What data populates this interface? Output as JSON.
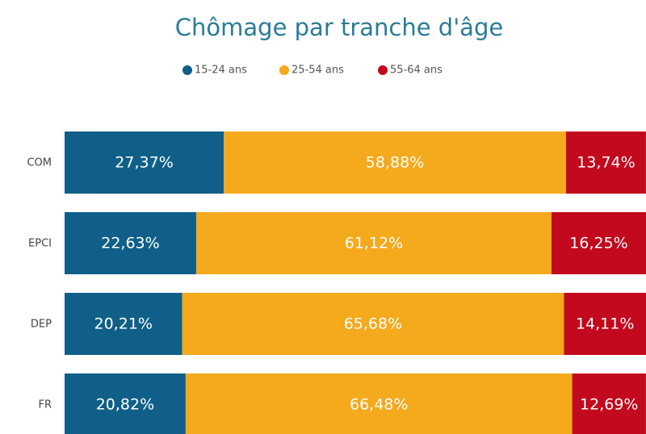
{
  "chart_data": {
    "type": "stacked_bar_horizontal",
    "title": "Chômage par tranche d'âge",
    "categories": [
      "COM",
      "EPCI",
      "DEP",
      "FR"
    ],
    "series": [
      {
        "name": "15-24 ans",
        "color": "#0f5f88",
        "values": [
          27.37,
          22.63,
          20.21,
          20.82
        ],
        "value_labels": [
          "27,37%",
          "22,63%",
          "20,21%",
          "20,82%"
        ]
      },
      {
        "name": "25-54 ans",
        "color": "#f5a91c",
        "values": [
          58.88,
          61.12,
          65.68,
          66.48
        ],
        "value_labels": [
          "58,88%",
          "61,12%",
          "65,68%",
          "66,48%"
        ]
      },
      {
        "name": "55-64 ans",
        "color": "#c3091d",
        "values": [
          13.74,
          16.25,
          14.11,
          12.69
        ],
        "value_labels": [
          "13,74%",
          "16,25%",
          "14,11%",
          "12,69%"
        ]
      }
    ],
    "xlim": [
      0,
      100
    ],
    "legend": "top"
  }
}
